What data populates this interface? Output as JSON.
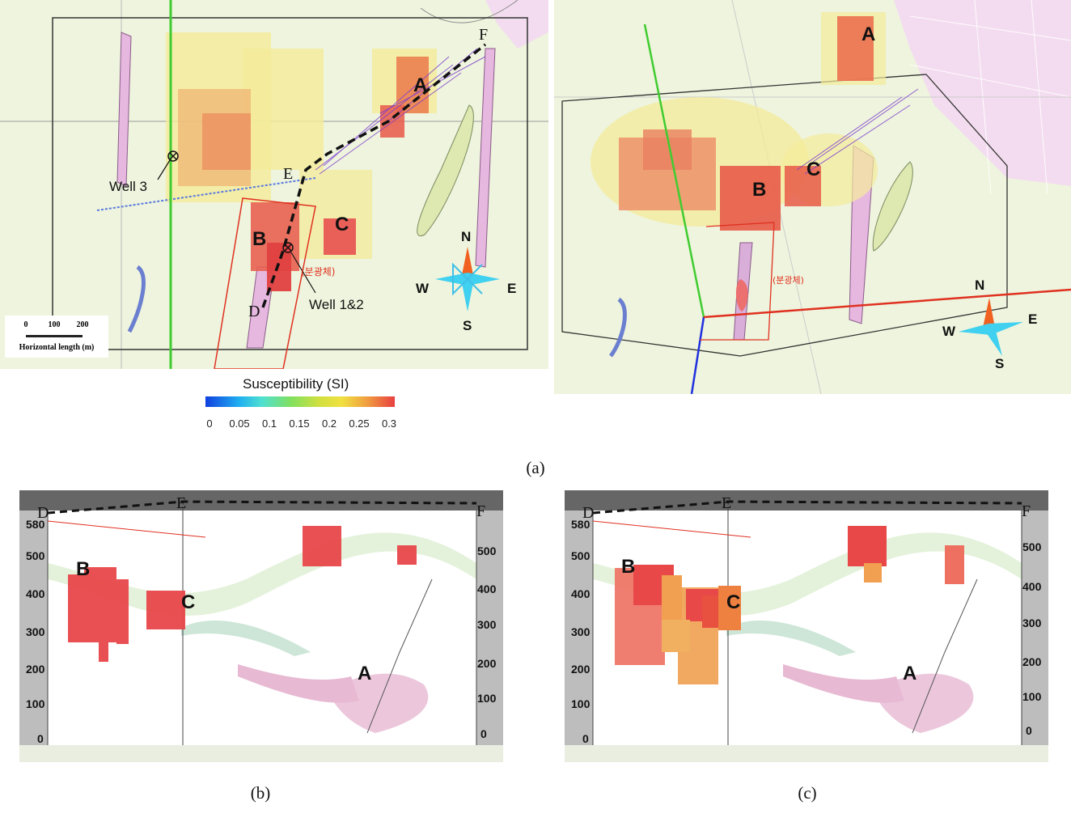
{
  "map_a1": {
    "labels": {
      "A": "A",
      "B": "B",
      "C": "C"
    },
    "points": {
      "D": "D",
      "E": "E",
      "F": "F"
    },
    "wells": {
      "well3": "Well 3",
      "well12": "Well 1&2"
    },
    "compass": {
      "n": "N",
      "s": "S",
      "w": "W",
      "e": "E"
    },
    "korean_label": "(분광체)",
    "scale": {
      "ticks": [
        "0",
        "100",
        "200"
      ],
      "label": "Horizontal length (m)"
    }
  },
  "map_a2": {
    "labels": {
      "A": "A",
      "B": "B",
      "C": "C"
    },
    "compass": {
      "n": "N",
      "s": "S",
      "w": "W",
      "e": "E"
    },
    "korean_label": "(분광체)"
  },
  "colorbar": {
    "title": "Susceptibility (SI)",
    "ticks": [
      "0",
      "0.05",
      "0.1",
      "0.15",
      "0.2",
      "0.25",
      "0.3"
    ],
    "colors": {
      "low": "#1040e0",
      "mid": "#80e060",
      "high": "#e84040"
    }
  },
  "section_b": {
    "points": {
      "D": "D",
      "E": "E",
      "F": "F"
    },
    "labels": {
      "A": "A",
      "B": "B",
      "C": "C"
    },
    "left_axis": [
      "580",
      "500",
      "400",
      "300",
      "200",
      "100",
      "0"
    ],
    "right_axis": [
      "500",
      "400",
      "300",
      "200",
      "100",
      "0"
    ]
  },
  "section_c": {
    "points": {
      "D": "D",
      "E": "E",
      "F": "F"
    },
    "labels": {
      "A": "A",
      "B": "B",
      "C": "C"
    },
    "left_axis": [
      "580",
      "500",
      "400",
      "300",
      "200",
      "100",
      "0"
    ],
    "right_axis": [
      "500",
      "400",
      "300",
      "200",
      "100",
      "0"
    ]
  },
  "captions": {
    "a": "(a)",
    "b": "(b)",
    "c": "(c)"
  }
}
